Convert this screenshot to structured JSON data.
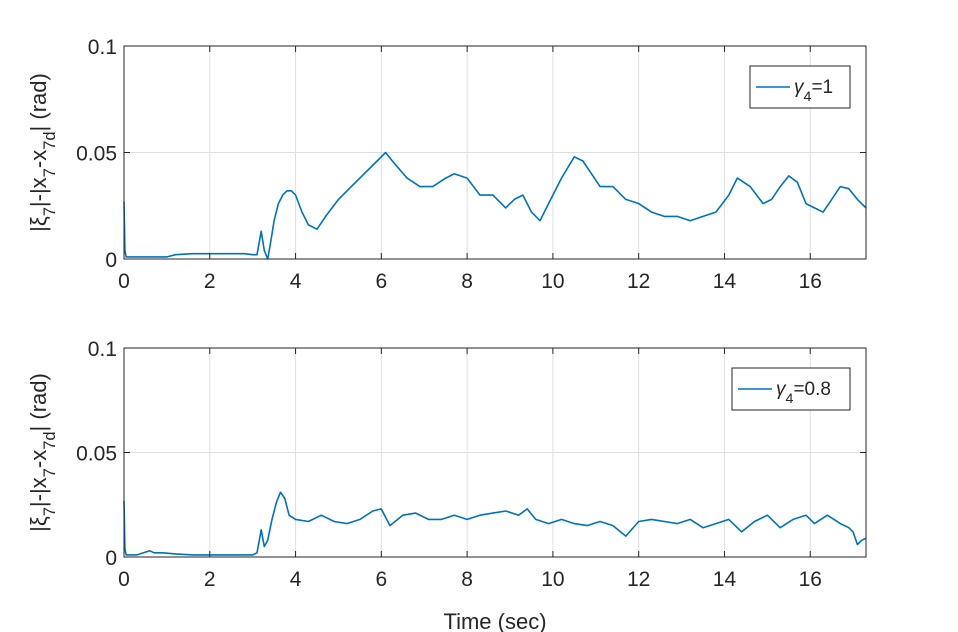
{
  "chart_data": [
    {
      "type": "line",
      "ylabel": {
        "main": "|ξ",
        "sub1": "7",
        "mid": "|-|x",
        "sub2": "7",
        "mid2": "-x",
        "sub3": "7d",
        "end": "| (rad)"
      },
      "xlabel": "",
      "xlim": [
        0,
        17.3
      ],
      "ylim": [
        0,
        0.1
      ],
      "xticks": [
        "0",
        "2",
        "4",
        "6",
        "8",
        "10",
        "12",
        "14",
        "16"
      ],
      "yticks": [
        "0",
        "0.05",
        "0.1"
      ],
      "grid": true,
      "legend_position": "top-right",
      "color": "#0072BD",
      "series": [
        {
          "name": {
            "sym": "γ",
            "sub": "4",
            "rest": "=1"
          },
          "x": [
            0,
            0.02,
            0.05,
            0.3,
            1.0,
            1.2,
            1.6,
            2.0,
            2.4,
            2.8,
            3.0,
            3.1,
            3.2,
            3.27,
            3.35,
            3.42,
            3.5,
            3.6,
            3.7,
            3.8,
            3.9,
            4.0,
            4.15,
            4.3,
            4.5,
            4.7,
            5.0,
            5.3,
            5.6,
            5.9,
            6.1,
            6.3,
            6.6,
            6.9,
            7.2,
            7.5,
            7.7,
            8.0,
            8.3,
            8.6,
            8.9,
            9.1,
            9.3,
            9.5,
            9.7,
            9.9,
            10.2,
            10.5,
            10.7,
            10.9,
            11.1,
            11.4,
            11.7,
            12.0,
            12.3,
            12.6,
            12.9,
            13.2,
            13.5,
            13.8,
            14.1,
            14.3,
            14.6,
            14.9,
            15.1,
            15.3,
            15.5,
            15.7,
            15.9,
            16.1,
            16.3,
            16.5,
            16.7,
            16.9,
            17.1,
            17.3
          ],
          "y": [
            0.027,
            0.004,
            0.001,
            0.001,
            0.001,
            0.002,
            0.0025,
            0.0025,
            0.0025,
            0.0025,
            0.002,
            0.002,
            0.013,
            0.004,
            0.0,
            0.008,
            0.018,
            0.026,
            0.03,
            0.032,
            0.032,
            0.03,
            0.022,
            0.016,
            0.014,
            0.02,
            0.028,
            0.034,
            0.04,
            0.046,
            0.05,
            0.045,
            0.038,
            0.034,
            0.034,
            0.038,
            0.04,
            0.038,
            0.03,
            0.03,
            0.024,
            0.028,
            0.03,
            0.022,
            0.018,
            0.026,
            0.038,
            0.048,
            0.046,
            0.04,
            0.034,
            0.034,
            0.028,
            0.026,
            0.022,
            0.02,
            0.02,
            0.018,
            0.02,
            0.022,
            0.03,
            0.038,
            0.034,
            0.026,
            0.028,
            0.034,
            0.039,
            0.036,
            0.026,
            0.024,
            0.022,
            0.028,
            0.034,
            0.033,
            0.028,
            0.024
          ]
        }
      ]
    },
    {
      "type": "line",
      "ylabel": {
        "main": "|ξ",
        "sub1": "7",
        "mid": "|-|x",
        "sub2": "7",
        "mid2": "-x",
        "sub3": "7d",
        "end": "| (rad)"
      },
      "xlabel": "Time (sec)",
      "xlim": [
        0,
        17.3
      ],
      "ylim": [
        0,
        0.1
      ],
      "xticks": [
        "0",
        "2",
        "4",
        "6",
        "8",
        "10",
        "12",
        "14",
        "16"
      ],
      "yticks": [
        "0",
        "0.05",
        "0.1"
      ],
      "grid": true,
      "legend_position": "top-right",
      "color": "#0072BD",
      "series": [
        {
          "name": {
            "sym": "γ",
            "sub": "4",
            "rest": "=0.8"
          },
          "x": [
            0,
            0.02,
            0.05,
            0.3,
            0.6,
            0.7,
            0.9,
            1.2,
            1.6,
            2.0,
            2.4,
            2.8,
            3.0,
            3.1,
            3.2,
            3.27,
            3.35,
            3.45,
            3.55,
            3.65,
            3.75,
            3.85,
            4.0,
            4.3,
            4.6,
            4.9,
            5.2,
            5.5,
            5.8,
            6.0,
            6.2,
            6.5,
            6.8,
            7.1,
            7.4,
            7.7,
            8.0,
            8.3,
            8.6,
            8.9,
            9.2,
            9.4,
            9.6,
            9.9,
            10.2,
            10.5,
            10.8,
            11.1,
            11.4,
            11.7,
            12.0,
            12.3,
            12.6,
            12.9,
            13.2,
            13.5,
            13.8,
            14.1,
            14.4,
            14.7,
            15.0,
            15.3,
            15.6,
            15.9,
            16.1,
            16.4,
            16.7,
            16.9,
            17.0,
            17.1,
            17.2,
            17.3
          ],
          "y": [
            0.027,
            0.004,
            0.001,
            0.001,
            0.003,
            0.002,
            0.002,
            0.0015,
            0.001,
            0.001,
            0.001,
            0.001,
            0.001,
            0.002,
            0.013,
            0.005,
            0.008,
            0.018,
            0.026,
            0.031,
            0.028,
            0.02,
            0.018,
            0.017,
            0.02,
            0.017,
            0.016,
            0.018,
            0.022,
            0.023,
            0.015,
            0.02,
            0.021,
            0.018,
            0.018,
            0.02,
            0.018,
            0.02,
            0.021,
            0.022,
            0.02,
            0.023,
            0.018,
            0.016,
            0.018,
            0.016,
            0.015,
            0.017,
            0.015,
            0.01,
            0.017,
            0.018,
            0.017,
            0.016,
            0.018,
            0.014,
            0.016,
            0.018,
            0.012,
            0.017,
            0.02,
            0.014,
            0.018,
            0.02,
            0.016,
            0.02,
            0.016,
            0.014,
            0.012,
            0.006,
            0.008,
            0.009
          ]
        }
      ]
    }
  ]
}
